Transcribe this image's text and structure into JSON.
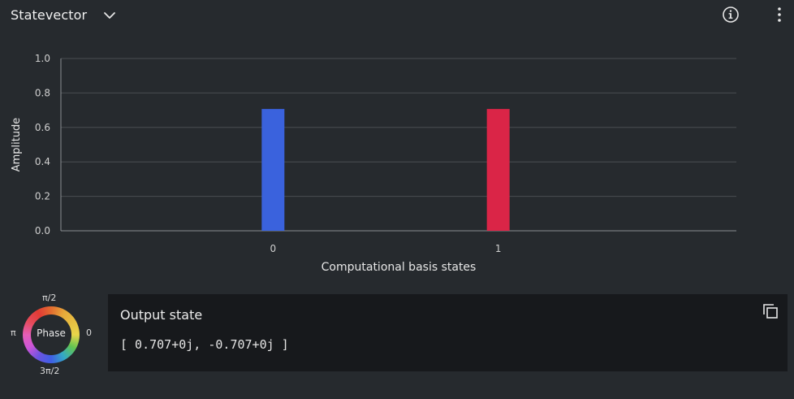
{
  "header": {
    "title": "Statevector",
    "dropdown_icon": "chevron-down-icon",
    "info_icon": "info-icon",
    "menu_icon": "overflow-menu-vertical-icon"
  },
  "chart_data": {
    "type": "bar",
    "categories": [
      "0",
      "1"
    ],
    "values": [
      0.707,
      0.707
    ],
    "bar_colors": [
      "#3a62dd",
      "#da2547"
    ],
    "ylabel": "Amplitude",
    "xlabel": "Computational basis states",
    "ylim": [
      0,
      1.0
    ],
    "yticks": [
      "0.0",
      "0.2",
      "0.4",
      "0.6",
      "0.8",
      "1.0"
    ],
    "grid": true
  },
  "phase_wheel": {
    "center_label": "Phase",
    "top_label": "π/2",
    "left_label": "π",
    "right_label": "0",
    "bottom_label": "3π/2"
  },
  "output": {
    "title": "Output state",
    "value": "[ 0.707+0j, -0.707+0j ]",
    "copy_icon": "copy-icon"
  },
  "colors": {
    "background": "#262a2e",
    "panel": "#17191c",
    "gridline": "#4a4e52"
  }
}
